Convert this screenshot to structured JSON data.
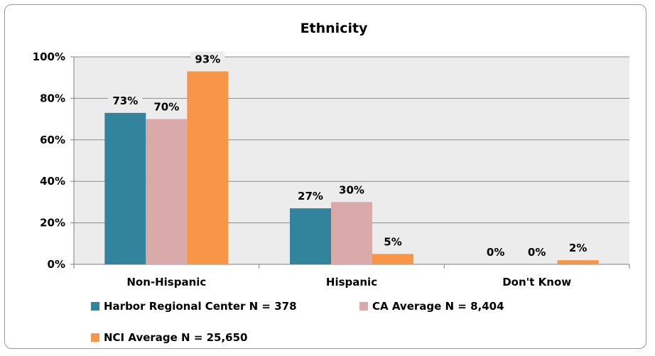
{
  "chart_data": {
    "type": "bar",
    "title": "Ethnicity",
    "categories": [
      "Non-Hispanic",
      "Hispanic",
      "Don't Know"
    ],
    "series": [
      {
        "name": "Harbor Regional Center N = 378",
        "values": [
          73,
          27,
          0
        ],
        "labels": [
          "73%",
          "27%",
          "0%"
        ],
        "color": "#31849b"
      },
      {
        "name": "CA Average N = 8,404",
        "values": [
          70,
          30,
          0
        ],
        "labels": [
          "70%",
          "30%",
          "0%"
        ],
        "color": "#d9aaa9"
      },
      {
        "name": "NCI Average N = 25,650",
        "values": [
          93,
          5,
          2
        ],
        "labels": [
          "93%",
          "5%",
          "2%"
        ],
        "color": "#f79646"
      }
    ],
    "yticks": [
      "0%",
      "20%",
      "40%",
      "60%",
      "80%",
      "100%"
    ],
    "ylim": [
      0,
      100
    ],
    "grid": true,
    "plot_background": "#ececec",
    "legend": "bottom"
  }
}
